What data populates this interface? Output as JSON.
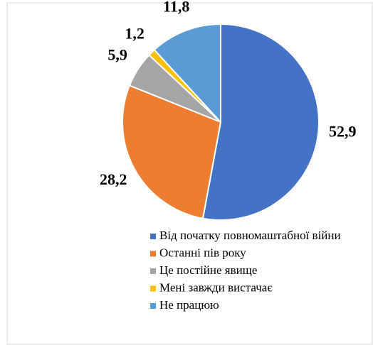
{
  "chart_data": {
    "type": "pie",
    "categories": [
      "Від початку повномаштабної війни",
      "Останні пів року",
      "Це постійне явище",
      "Мені завжди вистачає",
      "Не працюю"
    ],
    "values": [
      52.9,
      28.2,
      5.9,
      1.2,
      11.8
    ],
    "value_labels": [
      "52,9",
      "28,2",
      "5,9",
      "1,2",
      "11,8"
    ],
    "colors": [
      "#4472c4",
      "#ed7d31",
      "#a5a5a5",
      "#ffc000",
      "#5b9bd5"
    ],
    "legend": "bottom"
  }
}
